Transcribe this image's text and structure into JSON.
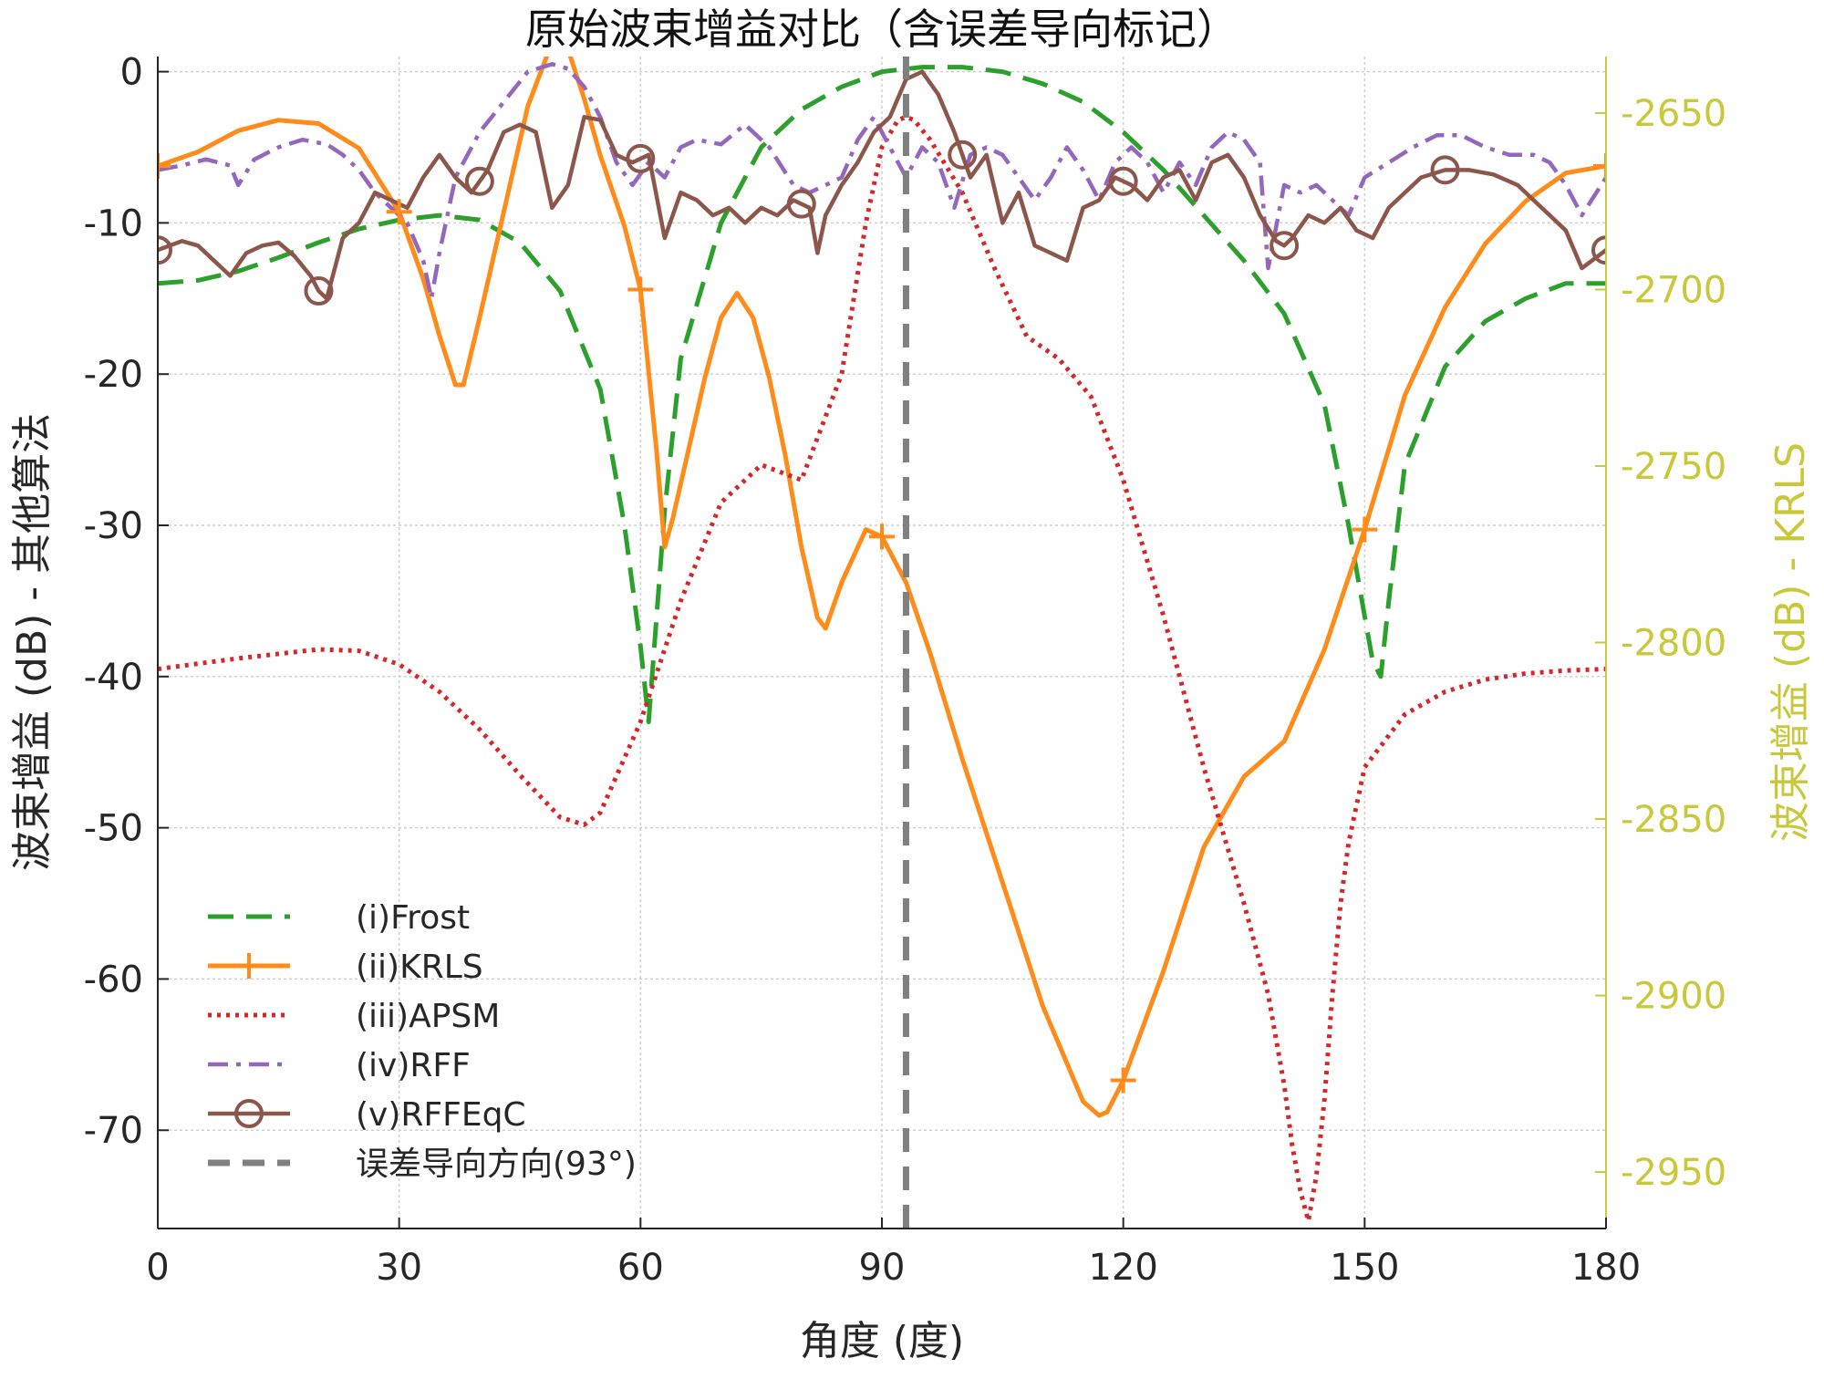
{
  "chart_data": {
    "type": "line",
    "title": "原始波束增益对比（含误差导向标记）",
    "xlabel": "角度 (度)",
    "ylabel_left": "波束增益 (dB) - 其他算法",
    "ylabel_right": "波束增益 (dB) - KRLS",
    "xlim": [
      0,
      180
    ],
    "ylim_left": [
      -76.5,
      1
    ],
    "ylim_right": [
      -2966,
      -2634
    ],
    "xticks": [
      0,
      30,
      60,
      90,
      120,
      150,
      180
    ],
    "yticks_left": [
      0,
      -10,
      -20,
      -30,
      -40,
      -50,
      -60,
      -70
    ],
    "yticks_right": [
      -2650,
      -2700,
      -2750,
      -2800,
      -2850,
      -2900,
      -2950
    ],
    "grid": true,
    "legend_position": "lower-left",
    "colors": {
      "frost": "#2ca02c",
      "krls": "#ff8c1a",
      "apsm": "#d62728",
      "rff": "#9467bd",
      "rffeqc": "#8c564b",
      "marker": "#808080",
      "right_axis": "#c8c83a"
    },
    "series": [
      {
        "name": "(i)Frost",
        "axis": "left",
        "style": "dashed",
        "x": [
          0,
          5,
          10,
          15,
          20,
          25,
          30,
          35,
          40,
          45,
          50,
          55,
          58,
          60,
          61,
          63,
          65,
          70,
          75,
          80,
          85,
          90,
          95,
          100,
          105,
          110,
          115,
          120,
          125,
          130,
          135,
          140,
          145,
          148,
          150,
          151,
          152,
          153,
          155,
          160,
          165,
          170,
          175,
          180
        ],
        "y": [
          -14,
          -13.8,
          -13.2,
          -12.3,
          -11.3,
          -10.4,
          -9.8,
          -9.5,
          -9.8,
          -11.3,
          -14.5,
          -21,
          -30,
          -38,
          -43,
          -29,
          -19,
          -10,
          -5,
          -2.5,
          -1,
          0,
          0.3,
          0.3,
          0,
          -0.8,
          -2,
          -4,
          -6.5,
          -9.5,
          -12.5,
          -16,
          -22,
          -30,
          -36,
          -39,
          -40,
          -35,
          -26,
          -19.5,
          -16.5,
          -15,
          -14,
          -14
        ]
      },
      {
        "name": "(ii)KRLS",
        "axis": "right",
        "style": "solid-plus",
        "x": [
          0,
          5,
          10,
          15,
          20,
          25,
          30,
          33,
          35,
          37,
          38,
          40,
          43,
          46,
          49,
          51,
          53,
          55,
          58,
          60,
          62,
          63,
          64,
          66,
          68,
          70,
          72,
          74,
          76,
          78,
          80,
          82,
          83,
          85,
          88,
          90,
          93,
          96,
          100,
          105,
          110,
          115,
          117,
          118,
          120,
          125,
          130,
          135,
          140,
          145,
          150,
          155,
          160,
          165,
          170,
          175,
          180
        ],
        "y": [
          -2665,
          -2661,
          -2655,
          -2652,
          -2653,
          -2660,
          -2678,
          -2697,
          -2713,
          -2727,
          -2727,
          -2708,
          -2678,
          -2648,
          -2630,
          -2632,
          -2646,
          -2662,
          -2682,
          -2700,
          -2746,
          -2773,
          -2765,
          -2745,
          -2725,
          -2708,
          -2701,
          -2708,
          -2725,
          -2747,
          -2773,
          -2793,
          -2796,
          -2783,
          -2768,
          -2770,
          -2783,
          -2803,
          -2833,
          -2868,
          -2903,
          -2930,
          -2934,
          -2933,
          -2924,
          -2893,
          -2858,
          -2838,
          -2828,
          -2802,
          -2768,
          -2730,
          -2705,
          -2687,
          -2675,
          -2667,
          -2665
        ]
      },
      {
        "name": "(iii)APSM",
        "axis": "left",
        "style": "dotted",
        "x": [
          0,
          10,
          20,
          25,
          30,
          35,
          40,
          45,
          50,
          53,
          55,
          60,
          65,
          70,
          75,
          80,
          85,
          88,
          90,
          92,
          93,
          94,
          96,
          100,
          104,
          108,
          112,
          116,
          120,
          125,
          130,
          135,
          138,
          140,
          141,
          142,
          143,
          144,
          145,
          146,
          147,
          148,
          150,
          155,
          160,
          165,
          170,
          175,
          180
        ],
        "y": [
          -39.5,
          -38.8,
          -38.2,
          -38.3,
          -39.2,
          -41,
          -43.5,
          -46.5,
          -49.3,
          -49.8,
          -49,
          -43,
          -35,
          -28.5,
          -26,
          -27,
          -20,
          -10,
          -5,
          -3.2,
          -3,
          -3.2,
          -4.5,
          -8,
          -13,
          -17.5,
          -19,
          -21.5,
          -27,
          -36,
          -46,
          -55,
          -61,
          -67,
          -71,
          -74,
          -76,
          -73,
          -68,
          -61,
          -55,
          -51,
          -46,
          -42.5,
          -41,
          -40.2,
          -39.8,
          -39.6,
          -39.5
        ]
      },
      {
        "name": "(iv)RFF",
        "axis": "left",
        "style": "dashdot",
        "x": [
          0,
          3,
          6,
          9,
          10,
          12,
          15,
          18,
          21,
          23,
          25,
          27,
          29,
          31,
          33,
          34,
          35,
          37,
          40,
          43,
          46,
          49,
          51,
          53,
          55,
          57,
          59,
          61,
          63,
          65,
          67,
          70,
          73,
          76,
          79,
          81,
          83,
          85,
          87,
          89,
          91,
          93,
          95,
          97,
          99,
          101,
          103,
          105,
          107,
          109,
          111,
          113,
          115,
          117,
          119,
          121,
          123,
          125,
          127,
          129,
          131,
          133,
          135,
          137,
          138,
          140,
          142,
          144,
          146,
          148,
          150,
          153,
          156,
          159,
          162,
          165,
          168,
          171,
          173,
          175,
          177,
          180
        ],
        "y": [
          -6.5,
          -6.2,
          -5.8,
          -6.2,
          -7.5,
          -5.8,
          -5,
          -4.5,
          -4.8,
          -5.5,
          -6.5,
          -8,
          -9,
          -10,
          -12.5,
          -15,
          -12,
          -7,
          -4,
          -2,
          0,
          0.5,
          0.2,
          -1,
          -3,
          -6,
          -7.5,
          -6,
          -7,
          -5,
          -4.5,
          -4.8,
          -3.5,
          -5,
          -7.5,
          -8,
          -7.5,
          -7,
          -4.5,
          -3,
          -5,
          -7,
          -5,
          -6,
          -9,
          -5.5,
          -5,
          -5.5,
          -7,
          -8.5,
          -7,
          -5,
          -6.5,
          -8.5,
          -6,
          -5,
          -6,
          -8,
          -6,
          -7.5,
          -5,
          -4,
          -4.5,
          -6,
          -13,
          -7.5,
          -8,
          -7.5,
          -8.5,
          -9.5,
          -7,
          -6,
          -5,
          -4.2,
          -4.2,
          -5,
          -5.5,
          -5.5,
          -6,
          -7.5,
          -9.5,
          -7
        ]
      },
      {
        "name": "(v)RFFEqC",
        "axis": "left",
        "style": "solid-circle",
        "x": [
          0,
          3,
          5,
          8,
          9,
          11,
          13,
          15,
          17,
          19,
          20,
          21,
          23,
          25,
          27,
          29,
          31,
          33,
          35,
          37,
          39,
          41,
          43,
          45,
          47,
          49,
          51,
          53,
          55,
          57,
          59,
          61,
          63,
          65,
          67,
          69,
          71,
          73,
          75,
          77,
          79,
          81,
          82,
          83,
          85,
          87,
          89,
          91,
          93,
          95,
          97,
          99,
          101,
          103,
          105,
          107,
          109,
          111,
          113,
          115,
          117,
          119,
          121,
          123,
          125,
          127,
          129,
          131,
          133,
          135,
          137,
          139,
          140,
          141,
          143,
          145,
          147,
          149,
          151,
          153,
          155,
          157,
          160,
          163,
          166,
          169,
          172,
          175,
          177,
          180
        ],
        "y": [
          -11.8,
          -11.2,
          -11.5,
          -13,
          -13.5,
          -12,
          -11.5,
          -11.3,
          -12.2,
          -13.5,
          -14.5,
          -15,
          -11,
          -10,
          -8,
          -8.5,
          -9,
          -7,
          -5.5,
          -7,
          -8,
          -6.5,
          -4,
          -3.5,
          -4,
          -9,
          -7.5,
          -3,
          -3.2,
          -5.5,
          -6,
          -5.5,
          -11,
          -8,
          -8.5,
          -9.5,
          -9,
          -10,
          -9,
          -9.5,
          -8.5,
          -9,
          -12,
          -9.5,
          -7.5,
          -6,
          -4,
          -3,
          -0.5,
          0,
          -1.5,
          -4,
          -7,
          -5.5,
          -10,
          -8,
          -11.5,
          -12,
          -12.5,
          -9,
          -8.5,
          -7,
          -7.5,
          -8.5,
          -7,
          -6.5,
          -8.5,
          -6,
          -5.5,
          -7,
          -9.5,
          -11.2,
          -11.5,
          -11,
          -9.5,
          -10,
          -9,
          -10.5,
          -11,
          -9,
          -8,
          -7,
          -6.5,
          -6.5,
          -6.8,
          -7.5,
          -9,
          -10.5,
          -13,
          -11.8
        ]
      },
      {
        "name": "误差导向方向(93°)",
        "axis": "left",
        "style": "vertical-dashed",
        "x": [
          93,
          93
        ],
        "y": [
          -76.5,
          1
        ]
      }
    ]
  }
}
